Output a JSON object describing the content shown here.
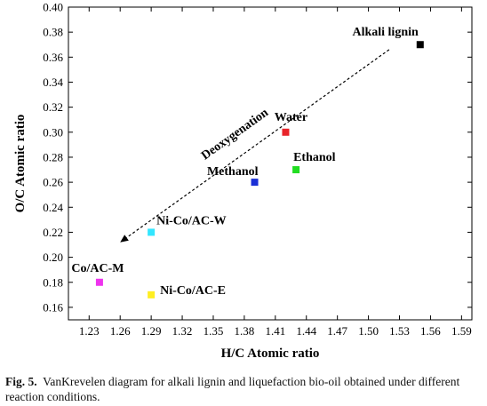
{
  "chart_data": {
    "type": "scatter",
    "xlabel": "H/C Atomic ratio",
    "ylabel": "O/C Atomic ratio",
    "xlim": [
      1.21,
      1.6
    ],
    "ylim": [
      0.15,
      0.4
    ],
    "x_ticks": [
      "1.23",
      "1.26",
      "1.29",
      "1.32",
      "1.35",
      "1.38",
      "1.41",
      "1.44",
      "1.47",
      "1.50",
      "1.53",
      "1.56",
      "1.59"
    ],
    "y_ticks": [
      "0.16",
      "0.18",
      "0.20",
      "0.22",
      "0.24",
      "0.26",
      "0.28",
      "0.30",
      "0.32",
      "0.34",
      "0.36",
      "0.38",
      "0.40"
    ],
    "grid": false,
    "points": [
      {
        "label": "Alkali lignin",
        "x": 1.55,
        "y": 0.37,
        "color": "#000000"
      },
      {
        "label": "Water",
        "x": 1.42,
        "y": 0.3,
        "color": "#e8242a"
      },
      {
        "label": "Ethanol",
        "x": 1.43,
        "y": 0.27,
        "color": "#22dd22"
      },
      {
        "label": "Methanol",
        "x": 1.39,
        "y": 0.26,
        "color": "#1a2fd6"
      },
      {
        "label": "Ni-Co/AC-W",
        "x": 1.29,
        "y": 0.22,
        "color": "#33e6ff"
      },
      {
        "label": "Co/AC-M",
        "x": 1.24,
        "y": 0.18,
        "color": "#ee33ee"
      },
      {
        "label": "Ni-Co/AC-E",
        "x": 1.29,
        "y": 0.17,
        "color": "#ffee22"
      }
    ],
    "annotation": {
      "text": "Deoxygenation",
      "arrow_from": {
        "x": 1.52,
        "y": 0.366
      },
      "arrow_to": {
        "x": 1.26,
        "y": 0.212
      }
    }
  },
  "caption": {
    "label": "Fig. 5.",
    "text": "VanKrevelen diagram for alkali lignin and liquefaction bio-oil obtained under different reaction conditions."
  }
}
